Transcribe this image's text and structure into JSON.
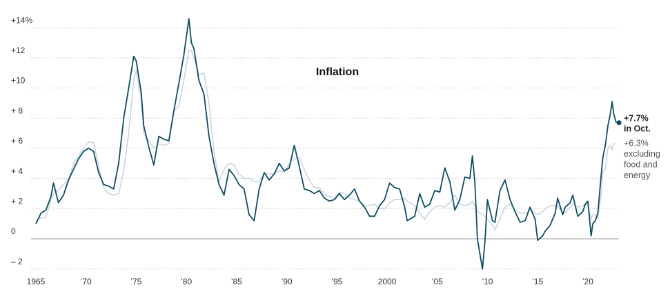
{
  "chart_data": {
    "type": "line",
    "title": "Inflation",
    "x": [
      1965,
      1965.5,
      1966,
      1966.5,
      1966.75,
      1967.25,
      1967.75,
      1968.25,
      1968.75,
      1969.25,
      1969.75,
      1970.25,
      1970.75,
      1971.25,
      1971.75,
      1972.25,
      1972.75,
      1973.25,
      1973.75,
      1974.25,
      1974.75,
      1975,
      1975.5,
      1975.75,
      1976.25,
      1976.75,
      1977.25,
      1977.75,
      1978.25,
      1978.75,
      1979.25,
      1979.75,
      1980.25,
      1980.5,
      1980.75,
      1981.25,
      1981.75,
      1982.25,
      1982.75,
      1983.25,
      1983.75,
      1984.25,
      1984.75,
      1985.25,
      1985.75,
      1986.25,
      1986.75,
      1987.25,
      1987.75,
      1988.25,
      1988.75,
      1989.25,
      1989.75,
      1990.25,
      1990.75,
      1991.25,
      1991.75,
      1992.25,
      1992.75,
      1993.25,
      1993.75,
      1994.25,
      1994.75,
      1995.25,
      1995.75,
      1996.25,
      1996.75,
      1997.25,
      1997.75,
      1998.25,
      1998.75,
      1999.25,
      1999.75,
      2000.25,
      2000.75,
      2001.25,
      2001.75,
      2002,
      2002.75,
      2003.25,
      2003.75,
      2004.25,
      2004.75,
      2005.25,
      2005.75,
      2006.25,
      2006.75,
      2007.25,
      2007.75,
      2008.25,
      2008.5,
      2008.75,
      2009,
      2009.5,
      2009.75,
      2010,
      2010.5,
      2010.75,
      2011.25,
      2011.75,
      2012.25,
      2012.75,
      2013.25,
      2013.75,
      2014.25,
      2014.75,
      2015,
      2015.5,
      2015.75,
      2016.25,
      2016.75,
      2017,
      2017.5,
      2017.75,
      2018.25,
      2018.5,
      2018.75,
      2019,
      2019.5,
      2019.75,
      2020,
      2020.33,
      2020.5,
      2020.75,
      2021,
      2021.33,
      2021.5,
      2021.75,
      2022,
      2022.25,
      2022.42,
      2022.58,
      2022.83
    ],
    "series": [
      {
        "color": "#0e4d5f",
        "values": [
          1.0,
          1.7,
          1.9,
          2.8,
          3.7,
          2.4,
          2.9,
          3.9,
          4.6,
          5.3,
          5.8,
          6.0,
          5.8,
          4.4,
          3.6,
          3.5,
          3.3,
          5.0,
          8.0,
          10.0,
          12.1,
          11.8,
          9.7,
          7.5,
          6.1,
          4.9,
          6.8,
          6.6,
          6.5,
          8.5,
          10.3,
          12.2,
          14.6,
          13.0,
          12.6,
          10.5,
          9.6,
          6.8,
          5.0,
          3.6,
          2.9,
          4.6,
          4.2,
          3.6,
          3.3,
          1.6,
          1.2,
          3.3,
          4.4,
          3.9,
          4.3,
          5.0,
          4.5,
          4.7,
          6.2,
          4.8,
          3.3,
          3.2,
          3.0,
          3.2,
          2.7,
          2.5,
          2.6,
          3.0,
          2.6,
          2.9,
          3.3,
          2.5,
          2.1,
          1.5,
          1.5,
          2.2,
          2.6,
          3.7,
          3.4,
          3.3,
          2.1,
          1.2,
          1.5,
          3.0,
          2.1,
          2.3,
          3.2,
          3.1,
          4.7,
          3.8,
          1.9,
          2.6,
          4.1,
          4.0,
          5.5,
          3.7,
          0.0,
          -2.0,
          -0.2,
          2.6,
          1.2,
          1.1,
          3.2,
          3.9,
          2.6,
          1.8,
          1.1,
          1.2,
          2.1,
          1.3,
          -0.1,
          0.2,
          0.5,
          0.9,
          1.7,
          2.7,
          1.6,
          2.1,
          2.4,
          2.9,
          2.2,
          1.5,
          1.8,
          2.3,
          2.5,
          0.2,
          1.0,
          1.2,
          1.7,
          4.2,
          5.4,
          6.2,
          7.5,
          8.3,
          9.1,
          8.3,
          7.7
        ]
      },
      {
        "color": "#c9d5e2",
        "values": [
          1.2,
          1.4,
          1.4,
          2.6,
          3.0,
          3.2,
          3.6,
          3.9,
          5.0,
          5.5,
          6.0,
          6.4,
          6.4,
          4.8,
          3.4,
          3.0,
          2.9,
          3.0,
          4.5,
          7.0,
          10.5,
          11.2,
          9.2,
          7.0,
          6.5,
          6.0,
          6.3,
          6.2,
          6.3,
          8.5,
          8.8,
          10.5,
          12.5,
          12.5,
          12.0,
          10.9,
          11.0,
          9.0,
          5.8,
          3.8,
          4.6,
          5.0,
          4.9,
          4.3,
          4.0,
          4.0,
          3.8,
          3.8,
          4.3,
          4.3,
          4.3,
          4.5,
          4.4,
          5.0,
          5.3,
          5.4,
          4.6,
          3.9,
          3.4,
          3.4,
          3.0,
          2.8,
          2.7,
          3.1,
          3.0,
          2.7,
          2.6,
          2.5,
          2.2,
          2.2,
          2.3,
          2.0,
          2.0,
          2.4,
          2.6,
          2.6,
          2.7,
          2.5,
          2.2,
          1.7,
          1.3,
          1.8,
          2.1,
          2.2,
          2.1,
          2.4,
          2.9,
          2.3,
          2.2,
          2.3,
          2.5,
          2.2,
          1.8,
          1.6,
          1.5,
          1.3,
          0.9,
          0.6,
          1.3,
          2.1,
          2.3,
          1.9,
          1.7,
          1.7,
          1.9,
          1.7,
          1.6,
          1.8,
          2.0,
          2.2,
          2.2,
          2.2,
          1.7,
          1.7,
          2.1,
          2.3,
          2.2,
          2.1,
          2.2,
          2.3,
          2.3,
          1.3,
          1.6,
          1.6,
          1.4,
          3.0,
          4.5,
          4.6,
          6.0,
          6.2,
          5.9,
          6.3,
          6.3
        ]
      }
    ],
    "xlim": [
      1965,
      2023
    ],
    "xticks": [
      {
        "value": 1965,
        "label": "1965"
      },
      {
        "value": 1970,
        "label": "’70"
      },
      {
        "value": 1975,
        "label": "’75"
      },
      {
        "value": 1980,
        "label": "’80"
      },
      {
        "value": 1985,
        "label": "’85"
      },
      {
        "value": 1990,
        "label": "’90"
      },
      {
        "value": 1995,
        "label": "’95"
      },
      {
        "value": 2000,
        "label": "2000"
      },
      {
        "value": 2005,
        "label": "’05"
      },
      {
        "value": 2010,
        "label": "’10"
      },
      {
        "value": 2015,
        "label": "’15"
      },
      {
        "value": 2020,
        "label": "’20"
      }
    ],
    "ylim": [
      -2.4,
      14.6
    ],
    "yticks": [
      {
        "value": 14,
        "label": "+14%"
      },
      {
        "value": 12,
        "label": "+12"
      },
      {
        "value": 10,
        "label": "+10"
      },
      {
        "value": 8,
        "label": "+ 8"
      },
      {
        "value": 6,
        "label": "+ 6"
      },
      {
        "value": 4,
        "label": "+ 4"
      },
      {
        "value": 2,
        "label": "+ 2"
      },
      0,
      {
        "value": -2,
        "label": "– 2"
      }
    ],
    "grid": true,
    "headline_note": [
      "+7.7%",
      "in Oct."
    ],
    "core_note": [
      "+6.3%",
      "excluding",
      "food and",
      "energy"
    ]
  }
}
